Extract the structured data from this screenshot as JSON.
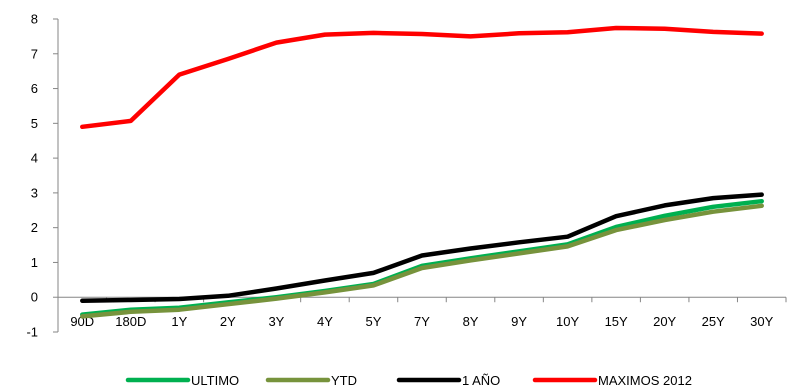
{
  "chart_data": {
    "type": "line",
    "categories": [
      "90D",
      "180D",
      "1Y",
      "2Y",
      "3Y",
      "4Y",
      "5Y",
      "7Y",
      "8Y",
      "9Y",
      "10Y",
      "15Y",
      "20Y",
      "25Y",
      "30Y"
    ],
    "ylim": [
      -1,
      8
    ],
    "yticks": [
      -1,
      0,
      1,
      2,
      3,
      4,
      5,
      6,
      7,
      8
    ],
    "grid": false,
    "legend_position": "bottom",
    "series": [
      {
        "name": "ULTIMO",
        "color": "#00b050",
        "values": [
          -0.5,
          -0.36,
          -0.3,
          -0.15,
          0.0,
          0.18,
          0.38,
          0.9,
          1.12,
          1.32,
          1.52,
          2.02,
          2.34,
          2.6,
          2.76
        ]
      },
      {
        "name": "YTD",
        "color": "#77933c",
        "values": [
          -0.55,
          -0.42,
          -0.36,
          -0.2,
          -0.04,
          0.14,
          0.34,
          0.84,
          1.06,
          1.26,
          1.46,
          1.93,
          2.22,
          2.46,
          2.63
        ]
      },
      {
        "name": "1 AÑO",
        "color": "#000000",
        "values": [
          -0.1,
          -0.08,
          -0.05,
          0.04,
          0.25,
          0.48,
          0.7,
          1.2,
          1.4,
          1.58,
          1.74,
          2.33,
          2.64,
          2.85,
          2.95
        ]
      },
      {
        "name": "MAXIMOS 2012",
        "color": "#ff0000",
        "values": [
          4.9,
          5.07,
          6.4,
          6.85,
          7.32,
          7.55,
          7.6,
          7.57,
          7.5,
          7.59,
          7.62,
          7.74,
          7.72,
          7.63,
          7.58
        ]
      }
    ]
  }
}
